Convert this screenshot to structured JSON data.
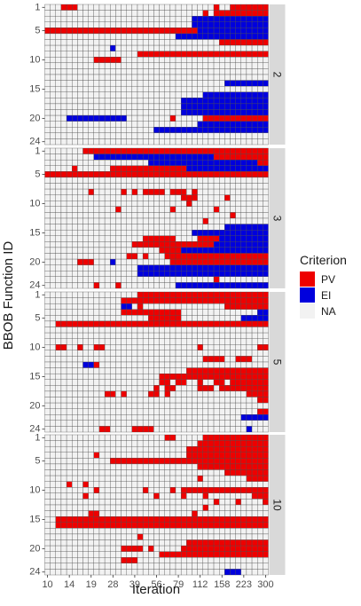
{
  "chart_data": {
    "type": "heatmap",
    "ylabel": "BBOB Function ID",
    "xlabel": "Iteration",
    "x_ticks": [
      "10",
      "14",
      "19",
      "28",
      "39",
      "56",
      "79",
      "112",
      "158",
      "223",
      "300"
    ],
    "y_ticks": [
      "1",
      "5",
      "10",
      "15",
      "20",
      "24"
    ],
    "n_columns": 41,
    "n_rows": 24,
    "legend": {
      "title": "Criterion",
      "entries": [
        {
          "label": "PV",
          "key": "R",
          "color": "#ee0000"
        },
        {
          "label": "EI",
          "key": "B",
          "color": "#0000dd"
        },
        {
          "label": "NA",
          "key": ".",
          "color": "#f2f2f2"
        }
      ],
      "placement": "right"
    },
    "panels": [
      {
        "strip": "2",
        "rows": [
          "...RRR.........................R..RRRRRRR",
          ".............................R.RRRRRRRRRR",
          "...........................BBBBBBBBBBBBBB",
          "...........................BBBBBBBBBBBBBB",
          "RRRRRRRRRRRRRRRRRRRRRRRRRRRRBBBBBBBBBBBBB",
          "........................BBBBBBBBBBBBBBBBB",
          "................................RRRRRRRRR",
          "............B............................",
          ".................RRRRRRRRRRRRRRRRRRRRRRRR",
          ".........RRRRR...........................",
          ".........................................",
          ".........................................",
          ".........................................",
          ".................................BBBBBBBB",
          ".........................................",
          ".............................BBBBBBBBBBBB",
          ".........................BBBBBBBBBBBBBBBB",
          ".........................BBBBBBBBBBBBBBBB",
          ".........................BBBBBBBBBBBBBBBB",
          "....BBBBBBBBBBB........R.....RRRRRRRRRRRR",
          "............................BBBBBBBBBBBBB",
          "....................BBBBBBBBBBBBBBBBBBBBB",
          ".........................................",
          "........................................."
        ]
      },
      {
        "strip": "3",
        "rows": [
          ".......RRRRRRRRRRRRRRRRRRRRRRRRRRRRRRRRRR",
          ".........BBBBBBBBBBBBBBBBBBBBBBRRRRRRRRRR",
          "...................BBBBBBBBBBBBBBBBBBBBRR",
          ".....R......RRRRRRRRRRRRRRBBBBBBBBBBBBBBB",
          "RRRRRRRRRRRRRRRRRRRRRRRRRRRRRRRRRRRRRRRRR",
          ".........................................",
          ".........................................",
          "........R.....R.R.RRRR.RRR.R.............",
          ".........................RRR.....R.......",
          "..........................R..............",
          ".............R.........R.......R.........",
          "..................................R......",
          ".............................R...........",
          ".................................BBBBBBBB",
          "...........................BBBBBBBBBBBBBB",
          "..................RRRRRR....RRRRBBBBBBBBB",
          "................RRRRRRRRRRRRRRRBBBBBBBBBB",
          ".....................RRRRBBBBBBBBBBBBBBBB",
          "...............RR.R...RRRRRRRRRRRRRRRRRRR",
          "......RRR...B..........RRRRRRRRRRRRRRRRRR",
          ".................BBBBBBBBBBBBBBBBBBBBBBBB",
          ".................BBBBBBBBBBBBBBBBBBBBBBBB",
          "...............................R.........",
          ".........R...R..........BBBBBBBBBBBBBBBBB"
        ]
      },
      {
        "strip": "5",
        "rows": [
          ".................RRRRRRRRRRRRRRRRRRRRRRRR",
          "..............RRRRRRRRRRRRRRRRRRRRRRRRRRR",
          "..............BB.R...............RRRRRRRR",
          "..............RRRRRRRRRRR..............BB",
          "...................RRRRRR...........BBBBB",
          "..RRRRRRRRRRRRRRRRRRRRRRRRRRRRRRRRRRRRRRR",
          ".........................................",
          ".........................................",
          ".........................................",
          "..RR..R..RR.................R..........RR",
          ".........................................",
          ".............................RRRR..RRR...",
          ".......BBR...............................",
          "..........................RRRRRRRRRRRRRRR",
          ".....................RRRRRRRRRRRRRRRRRRRR",
          ".....................RR.RR..R..RR.RRRRRRR",
          "....................R.RR....RRR.RRRRRRRRR",
          "...........RR.R....RR.R..............RRRR",
          ".......................................RR",
          ".........................................",
          ".......................................RR",
          "....................................BBBBB",
          ".........................................",
          "..........RR....RRRR.................B..."
        ]
      },
      {
        "strip": "10",
        "rows": [
          "......................RR.....RRRRRRRRRRRR",
          "............................RRRRRRRRRRRRR",
          "..........................RRRRRRRRRRRRRRR",
          ".........R................RRRRRRRRRRRRRRR",
          "............RRRRRRRRRRRRRRRRRRRRRRRRRRRRR",
          "............................RRRRRRRRRRRRR",
          ".................................RRRRRRRR",
          "............................R........RRRR",
          "....R..R.................................",
          ".........R........R....R.RRRRRRRRRRRRRRRR",
          ".......R............R....R...R........RRR",
          "...............................R...R....R",
          ".............................R...........",
          "........RR.................R.............",
          "..RRRRRRRRRRRRRRRRRRRRRRRRRRRRRRRRRRRRRRR",
          "..RRRRRRRRRRRRRRRRRRRRRRRRRRRRRRRRRRRRRRR",
          ".........................................",
          ".................R.......................",
          "..........................RRRRRRRRRRRRRRR",
          "..............RRRR.R.....RRRRRRRRRRRRRRRR",
          ".....................RRRRRRRRRRRRRRRRRRRR",
          "..............RRR........................",
          ".........................................",
          ".................................BBB....."
        ]
      }
    ]
  }
}
